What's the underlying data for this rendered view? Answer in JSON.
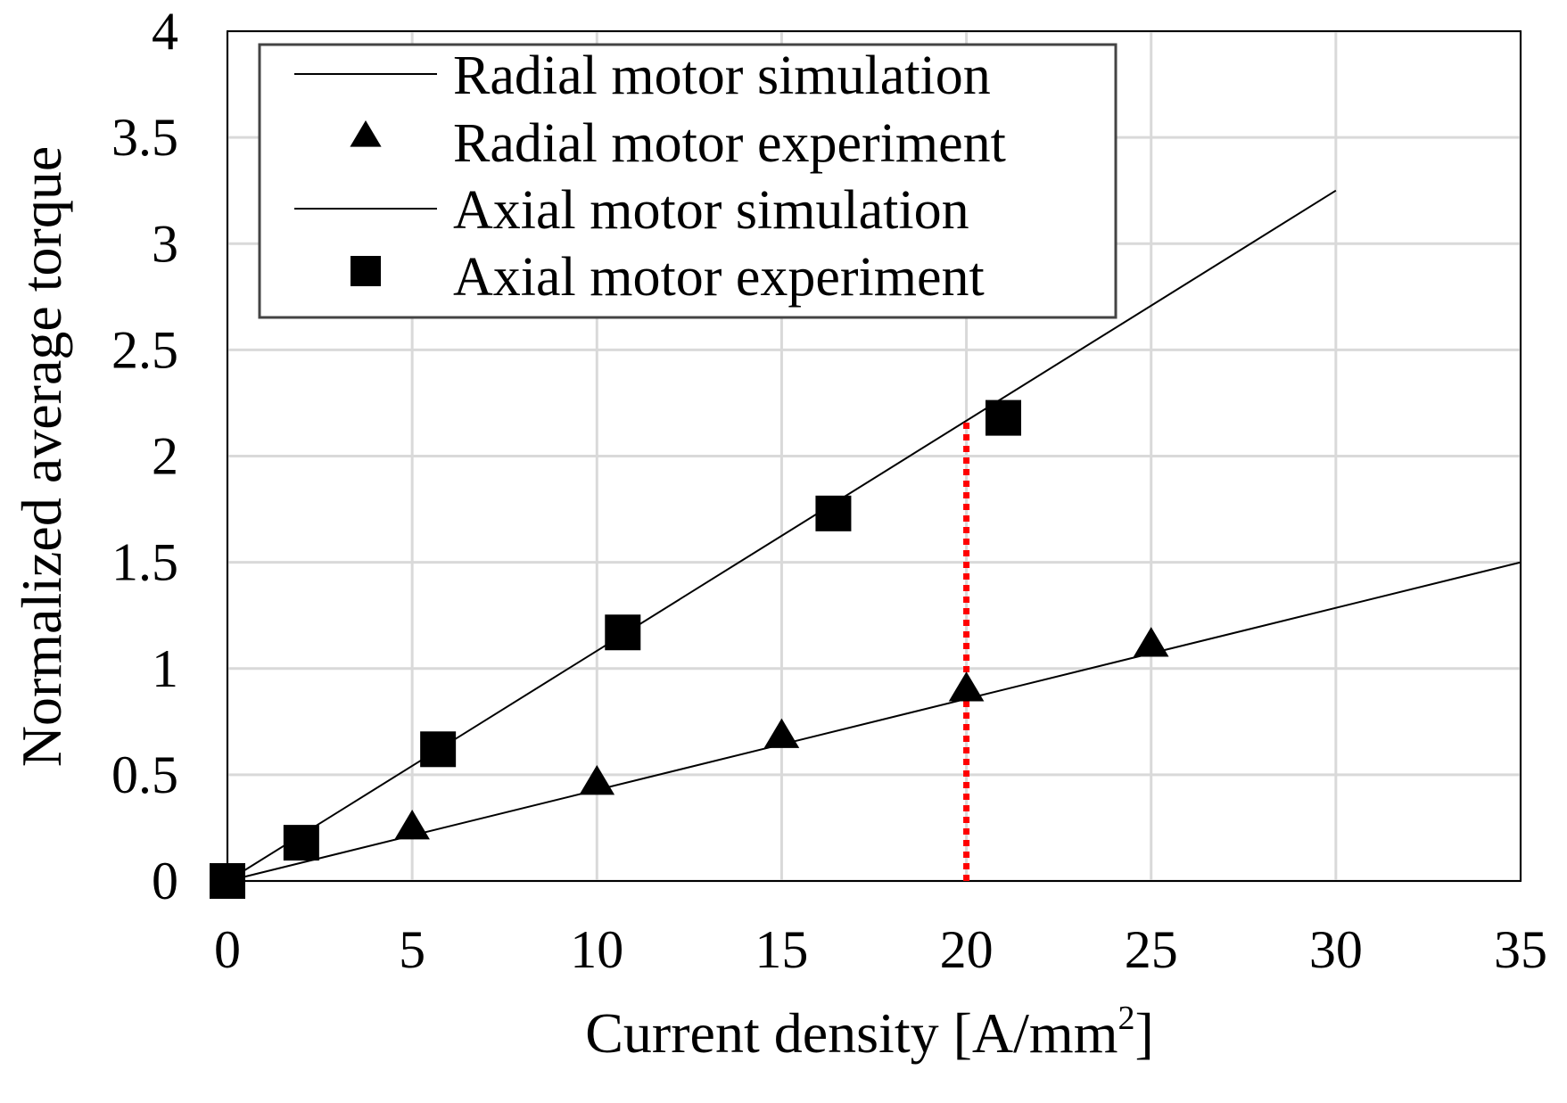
{
  "chart_data": {
    "type": "line",
    "title": "",
    "xlabel": "Current  density [A/mm",
    "xlabel_sup": "2",
    "xlabel_end": "]",
    "ylabel": "Normalized   average torque",
    "xlim": [
      0,
      35
    ],
    "ylim": [
      0,
      4
    ],
    "xticks": [
      "0",
      "5",
      "10",
      "15",
      "20",
      "25",
      "30",
      "35"
    ],
    "yticks": [
      "0",
      "0.5",
      "1",
      "1.5",
      "2",
      "2.5",
      "3",
      "3.5",
      "4"
    ],
    "grid": true,
    "legend_position": "top-left",
    "series": [
      {
        "name": "Radial motor simulation",
        "kind": "line",
        "x": [
          0,
          35
        ],
        "y": [
          0,
          1.5
        ]
      },
      {
        "name": "Radial motor experiment",
        "kind": "marker",
        "marker": "triangle",
        "x": [
          0,
          5,
          10,
          15,
          20,
          25
        ],
        "y": [
          0,
          0.26,
          0.47,
          0.69,
          0.91,
          1.12
        ]
      },
      {
        "name": "Axial motor simulation",
        "kind": "line",
        "x": [
          0,
          30
        ],
        "y": [
          0,
          3.25
        ]
      },
      {
        "name": "Axial motor experiment",
        "kind": "marker",
        "marker": "square",
        "x": [
          0,
          2,
          5.7,
          10.7,
          16.4,
          21
        ],
        "y": [
          0,
          0.18,
          0.62,
          1.17,
          1.73,
          2.18
        ]
      }
    ],
    "annotation": {
      "type": "vertical-dotted-line",
      "x": 20,
      "y_from": 0,
      "y_to": 2.17,
      "color": "#ff0000"
    }
  }
}
